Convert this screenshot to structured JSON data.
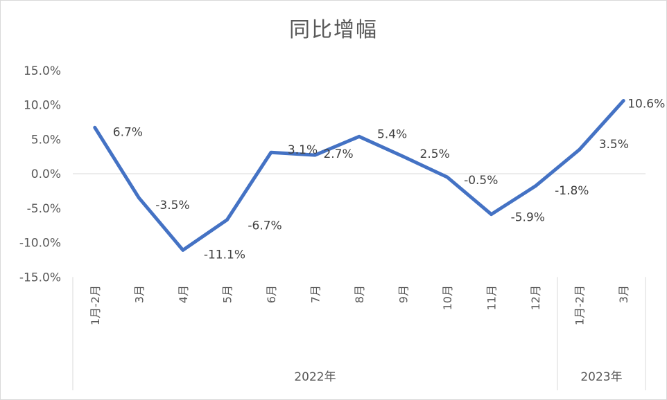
{
  "chart_data": {
    "type": "line",
    "title": "同比增幅",
    "xlabel": "",
    "ylabel": "",
    "ylim": [
      -15,
      15
    ],
    "y_ticks": [
      "15.0%",
      "10.0%",
      "5.0%",
      "0.0%",
      "-5.0%",
      "-10.0%",
      "-15.0%"
    ],
    "y_tick_values": [
      15,
      10,
      5,
      0,
      -5,
      -10,
      -15
    ],
    "categories": [
      "1月-2月",
      "3月",
      "4月",
      "5月",
      "6月",
      "7月",
      "8月",
      "9月",
      "10月",
      "11月",
      "12月",
      "1月-2月",
      "3月"
    ],
    "groups": [
      {
        "label": "2022年",
        "count": 11
      },
      {
        "label": "2023年",
        "count": 2
      }
    ],
    "series": [
      {
        "values": [
          6.7,
          -3.5,
          -11.1,
          -6.7,
          3.1,
          2.7,
          5.4,
          2.5,
          -0.5,
          -5.9,
          -1.8,
          3.5,
          10.6
        ],
        "labels": [
          "6.7%",
          "-3.5%",
          "-11.1%",
          "-6.7%",
          "3.1%",
          "2.7%",
          "5.4%",
          "2.5%",
          "-0.5%",
          "-5.9%",
          "-1.8%",
          "3.5%",
          "10.6%"
        ],
        "color": "#4472c4"
      }
    ],
    "grid": false,
    "legend": "none"
  }
}
